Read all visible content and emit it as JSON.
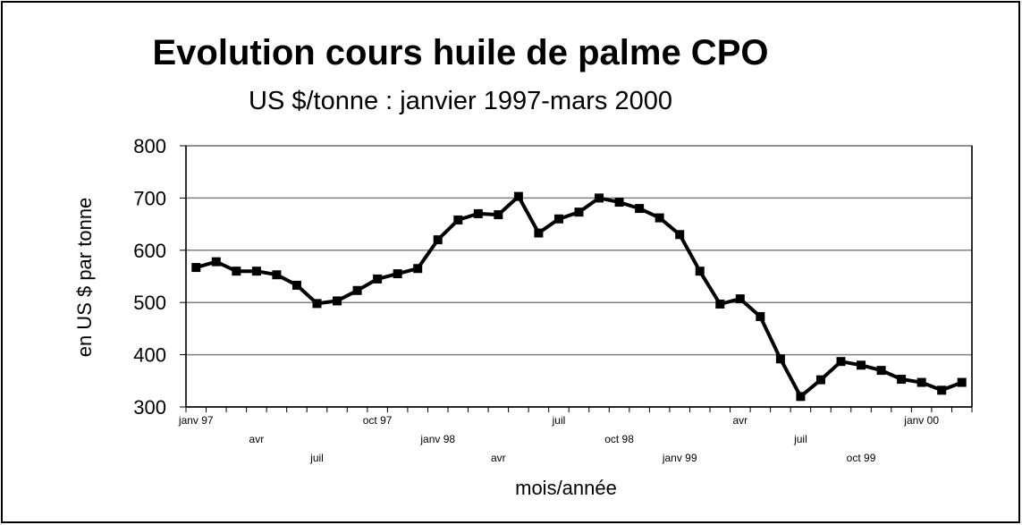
{
  "chart_data": {
    "type": "line",
    "title": "Evolution cours huile de palme CPO",
    "subtitle": "US $/tonne : janvier 1997-mars 2000",
    "y_label": "en US $ par tonne",
    "x_label": "mois/année",
    "categories": [
      "janv 97",
      null,
      null,
      "avr",
      null,
      null,
      "juil",
      null,
      null,
      "oct 97",
      null,
      null,
      "janv 98",
      null,
      null,
      "avr",
      null,
      null,
      "juil",
      null,
      null,
      "oct 98",
      null,
      null,
      "janv 99",
      null,
      null,
      "avr",
      null,
      null,
      "juil",
      null,
      null,
      "oct 99",
      null,
      null,
      "janv 00",
      null,
      null
    ],
    "series": [
      {
        "name": "CPO",
        "color": "#000000",
        "values": [
          567,
          578,
          560,
          560,
          553,
          533,
          498,
          503,
          523,
          545,
          555,
          565,
          620,
          658,
          670,
          668,
          703,
          633,
          660,
          673,
          700,
          692,
          680,
          662,
          630,
          560,
          497,
          507,
          473,
          392,
          320,
          352,
          387,
          380,
          370,
          353,
          347,
          332,
          347
        ]
      }
    ],
    "ylim": [
      300,
      800
    ],
    "yticks": [
      300,
      400,
      500,
      600,
      700,
      800
    ],
    "grid": true
  }
}
